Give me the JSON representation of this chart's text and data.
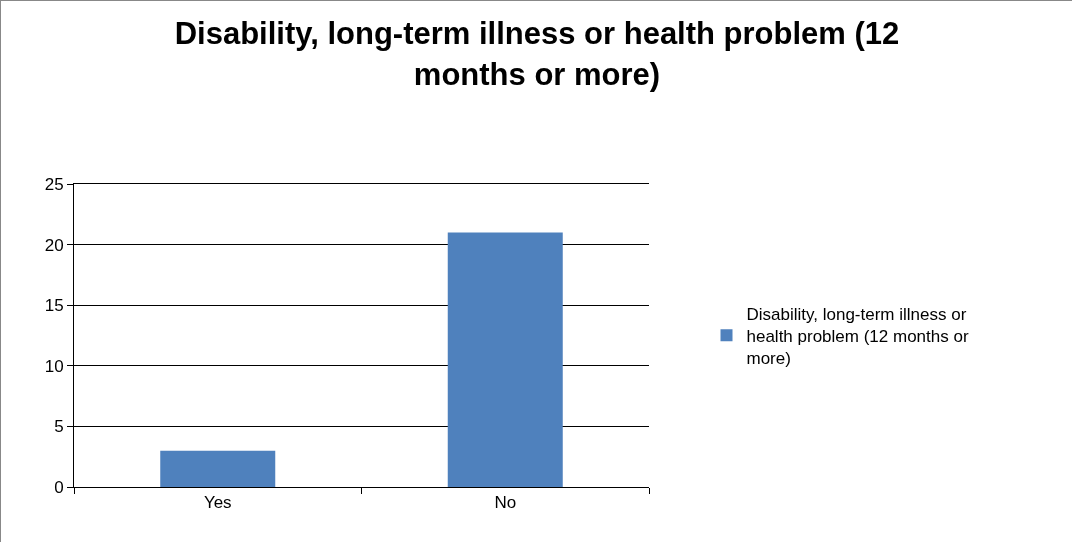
{
  "chart_data": {
    "type": "bar",
    "title": "Disability, long-term illness or health problem (12 months or more)",
    "categories": [
      "Yes",
      "No"
    ],
    "series": [
      {
        "name": "Disability, long-term illness or health problem (12 months or more)",
        "color": "#4f81bd",
        "values": [
          3,
          21
        ]
      }
    ],
    "ylim": [
      0,
      25
    ],
    "yticks": [
      0,
      5,
      10,
      15,
      20,
      25
    ],
    "grid": "y",
    "legend": "right"
  }
}
